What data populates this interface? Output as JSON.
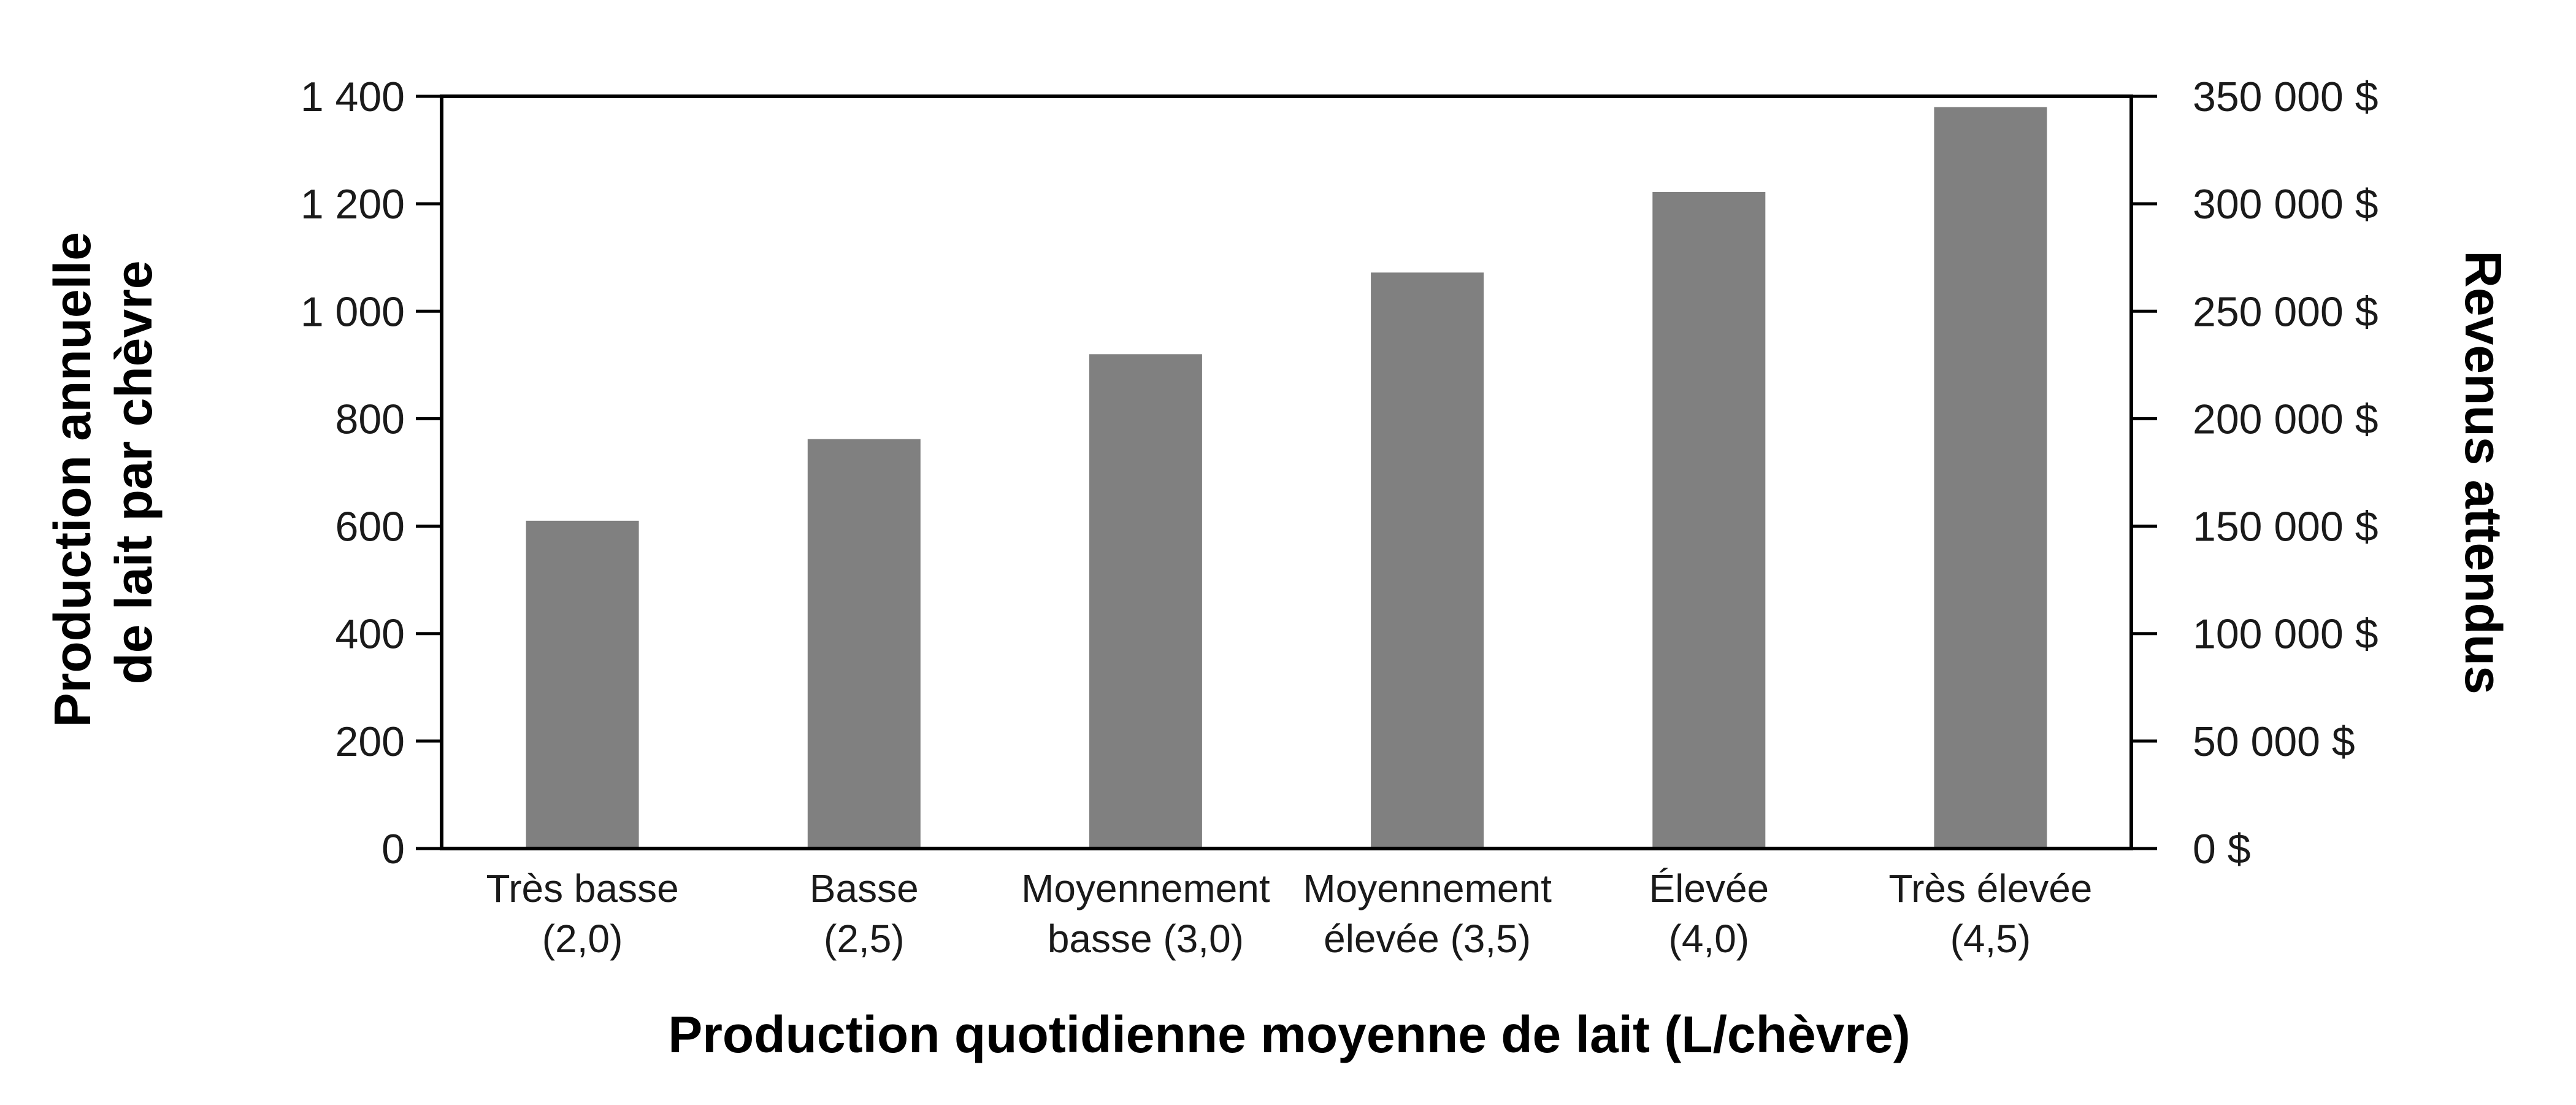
{
  "chart_data": {
    "type": "bar",
    "categories": [
      [
        "Très basse",
        "(2,0)"
      ],
      [
        "Basse",
        "(2,5)"
      ],
      [
        "Moyennement",
        "basse (3,0)"
      ],
      [
        "Moyennement",
        "élevée (3,5)"
      ],
      [
        "Élevée",
        "(4,0)"
      ],
      [
        "Très élevée",
        "(4,5)"
      ]
    ],
    "values": [
      610,
      762,
      920,
      1072,
      1222,
      1380
    ],
    "xlabel": "Production quotidienne moyenne de lait (L/chèvre)",
    "ylabel": [
      "Production annuelle",
      "de lait par chèvre"
    ],
    "y2label": "Revenus attendus",
    "ylim": [
      0,
      1400
    ],
    "y2lim": [
      0,
      350000
    ],
    "yticks": [
      0,
      200,
      400,
      600,
      800,
      1000,
      1200,
      1400
    ],
    "yticklabels": [
      "0",
      "200",
      "400",
      "600",
      "800",
      "1 000",
      "1 200",
      "1 400"
    ],
    "y2ticklabels": [
      "0 $",
      "50 000 $",
      "100 000 $",
      "150 000 $",
      "200 000 $",
      "250 000 $",
      "300 000 $",
      "350 000 $"
    ],
    "bar_color": "#808080",
    "grid": false
  }
}
